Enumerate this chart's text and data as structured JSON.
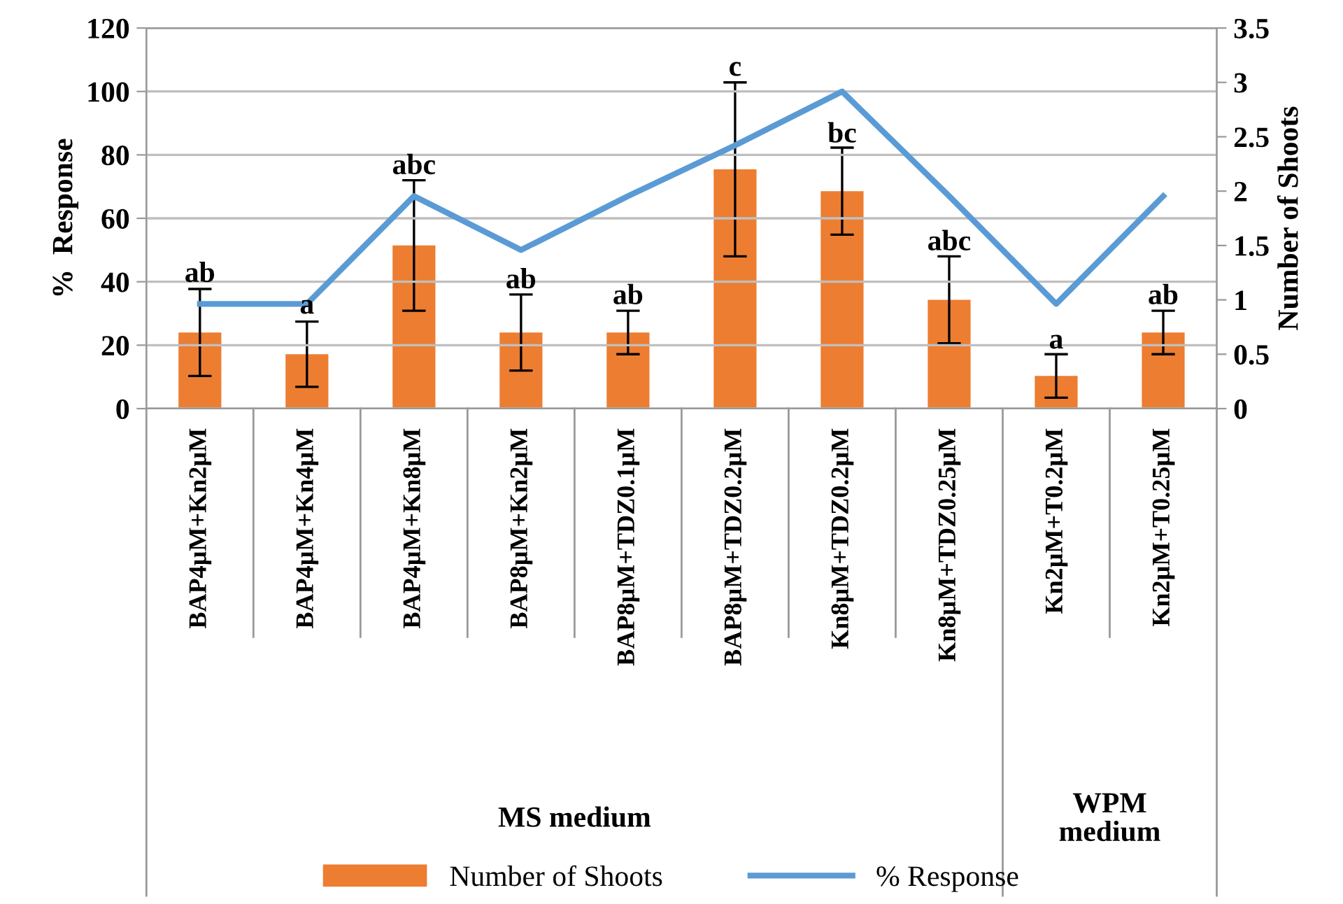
{
  "chart_data": {
    "type": "bar",
    "ylabel": "%  Response",
    "y2label": "Number of Shoots",
    "categories": [
      "BAP4µM+Kn2µM",
      "BAP4µM+Kn4µM",
      "BAP4µM+Kn8µM",
      "BAP8µM+Kn2µM",
      "BAP8µM+TDZ0.1µM",
      "BAP8µM+TDZ0.2µM",
      "Kn8µM+TDZ0.2µM",
      "Kn8µM+TDZ0.25µM",
      "Kn2µM+T0.2µM",
      "Kn2µM+T0.25µM"
    ],
    "series": [
      {
        "name": "Number of Shoots",
        "axis": "y2",
        "color": "#ed7d31",
        "values": [
          0.7,
          0.5,
          1.5,
          0.7,
          0.7,
          2.2,
          2.0,
          1.0,
          0.3,
          0.7
        ],
        "errors": [
          0.4,
          0.3,
          0.6,
          0.35,
          0.2,
          0.8,
          0.4,
          0.4,
          0.2,
          0.2
        ]
      },
      {
        "name": "% Response",
        "type": "line",
        "color": "#5b9bd5",
        "values": [
          33,
          33,
          67,
          50,
          67,
          83,
          100,
          67,
          33,
          67
        ]
      }
    ],
    "ylim": [
      0,
      120
    ],
    "yticks": [
      0,
      20,
      40,
      60,
      80,
      100,
      120
    ],
    "y2lim": [
      0,
      3.5
    ],
    "y2ticks": [
      0,
      0.5,
      1,
      1.5,
      2,
      2.5,
      3,
      3.5
    ],
    "annotations": [
      {
        "text": "ab",
        "x": "BAP4µM+Kn2µM",
        "y": 38
      },
      {
        "text": "a",
        "x": "BAP4µM+Kn4µM",
        "y": 28
      },
      {
        "text": "abc",
        "x": "BAP4µM+Kn8µM",
        "y": 72
      },
      {
        "text": "ab",
        "x": "BAP8µM+Kn2µM",
        "y": 36
      },
      {
        "text": "ab",
        "x": "BAP8µM+TDZ0.1µM",
        "y": 31
      },
      {
        "text": "c",
        "x": "BAP8µM+TDZ0.2µM",
        "y": 103
      },
      {
        "text": "bc",
        "x": "Kn8µM+TDZ0.2µM",
        "y": 82
      },
      {
        "text": "abc",
        "x": "Kn8µM+TDZ0.25µM",
        "y": 48
      },
      {
        "text": "a",
        "x": "Kn2µM+T0.2µM",
        "y": 17
      },
      {
        "text": "ab",
        "x": "Kn2µM+T0.25µM",
        "y": 31
      },
      "MS medium",
      "WPM\nmedium"
    ],
    "grid": "y",
    "legend": "bottom",
    "marker": "none",
    "line_style": "solid"
  }
}
